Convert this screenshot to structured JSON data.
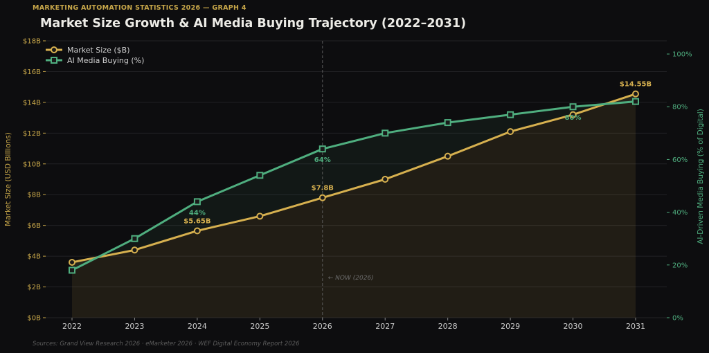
{
  "supertitle": "MARKETING AUTOMATION STATISTICS 2026 — GRAPH 4",
  "title": "Market Size Growth & AI Media Buying Trajectory (2022–2031)",
  "source": "Sources: Grand View Research 2026 · eMarketer 2026 · WEF Digital Economy Report 2026",
  "colors": {
    "market": "#d6b04f",
    "ai": "#4fae7f",
    "background": "#0d0d0f"
  },
  "chart_data": {
    "type": "line",
    "x": [
      "2022",
      "2023",
      "2024",
      "2025",
      "2026",
      "2027",
      "2028",
      "2029",
      "2030",
      "2031"
    ],
    "series": [
      {
        "name": "Market Size ($B)",
        "axis": "left",
        "marker": "circle",
        "values": [
          3.6,
          4.4,
          5.65,
          6.6,
          7.8,
          9.0,
          10.5,
          12.1,
          13.2,
          14.55
        ]
      },
      {
        "name": "AI Media Buying (%)",
        "axis": "right",
        "marker": "square",
        "values": [
          18,
          30,
          44,
          54,
          64,
          70,
          74,
          77,
          80,
          82
        ]
      }
    ],
    "ylabel_left": "Market Size (USD Billions)",
    "ylabel_right": "AI-Driven Media Buying (% of Digital)",
    "ylim_left": [
      0,
      18
    ],
    "ylim_right": [
      0,
      105
    ],
    "yticks_left": [
      "$0B",
      "$2B",
      "$4B",
      "$6B",
      "$8B",
      "$10B",
      "$12B",
      "$14B",
      "$16B",
      "$18B"
    ],
    "yticks_right": [
      "0%",
      "20%",
      "40%",
      "60%",
      "80%",
      "100%"
    ],
    "grid": true,
    "legend_position": "top-left",
    "annotations": [
      {
        "series": 0,
        "index": 2,
        "text": "$5.65B"
      },
      {
        "series": 0,
        "index": 4,
        "text": "$7.8B"
      },
      {
        "series": 0,
        "index": 9,
        "text": "$14.55B"
      },
      {
        "series": 1,
        "index": 2,
        "text": "44%"
      },
      {
        "series": 1,
        "index": 4,
        "text": "64%"
      },
      {
        "series": 1,
        "index": 8,
        "text": "80%"
      }
    ],
    "now_marker": {
      "x": "2026",
      "label": "← NOW (2026)"
    }
  }
}
